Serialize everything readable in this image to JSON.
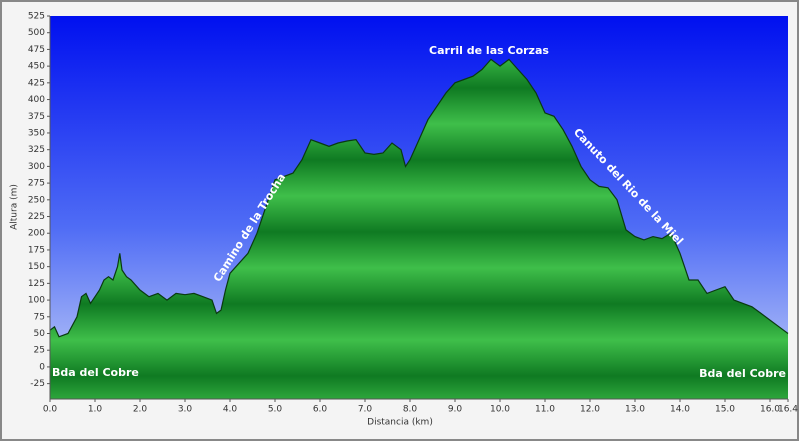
{
  "chart_data": {
    "type": "area",
    "xlabel": "Distancia  (km)",
    "ylabel": "Altura (m)",
    "x": [
      0.0,
      0.1,
      0.2,
      0.4,
      0.6,
      0.7,
      0.8,
      0.9,
      1.0,
      1.1,
      1.2,
      1.3,
      1.4,
      1.5,
      1.55,
      1.6,
      1.7,
      1.8,
      2.0,
      2.2,
      2.4,
      2.6,
      2.8,
      3.0,
      3.2,
      3.4,
      3.6,
      3.7,
      3.8,
      3.9,
      4.0,
      4.2,
      4.4,
      4.6,
      4.8,
      5.0,
      5.2,
      5.4,
      5.6,
      5.8,
      6.0,
      6.2,
      6.4,
      6.6,
      6.8,
      7.0,
      7.2,
      7.4,
      7.6,
      7.8,
      7.9,
      8.0,
      8.2,
      8.4,
      8.6,
      8.8,
      9.0,
      9.2,
      9.4,
      9.6,
      9.8,
      10.0,
      10.2,
      10.4,
      10.6,
      10.8,
      11.0,
      11.2,
      11.4,
      11.6,
      11.8,
      12.0,
      12.2,
      12.4,
      12.6,
      12.8,
      13.0,
      13.2,
      13.4,
      13.6,
      13.8,
      14.0,
      14.2,
      14.4,
      14.6,
      14.8,
      15.0,
      15.2,
      15.4,
      15.6,
      15.8,
      16.0,
      16.2,
      16.4
    ],
    "values": [
      55,
      60,
      45,
      50,
      75,
      105,
      110,
      95,
      105,
      115,
      130,
      135,
      130,
      150,
      170,
      145,
      135,
      130,
      115,
      105,
      110,
      100,
      110,
      108,
      110,
      105,
      100,
      80,
      85,
      115,
      140,
      155,
      170,
      200,
      240,
      280,
      285,
      290,
      310,
      340,
      335,
      330,
      335,
      338,
      340,
      320,
      318,
      320,
      335,
      325,
      300,
      310,
      340,
      370,
      390,
      410,
      425,
      430,
      435,
      445,
      460,
      450,
      460,
      445,
      430,
      410,
      380,
      375,
      355,
      330,
      300,
      280,
      270,
      268,
      250,
      205,
      195,
      190,
      195,
      192,
      200,
      170,
      130,
      130,
      110,
      115,
      120,
      100,
      95,
      90,
      80,
      70,
      60,
      50
    ],
    "color": "#1f9a2f",
    "xlim": [
      0,
      16.4
    ],
    "xticks": [
      {
        "value": 0,
        "label": "0.0"
      },
      {
        "value": 1,
        "label": "1.0"
      },
      {
        "value": 2,
        "label": "2.0"
      },
      {
        "value": 3,
        "label": "3.0"
      },
      {
        "value": 4,
        "label": "4.0"
      },
      {
        "value": 5,
        "label": "5.0"
      },
      {
        "value": 6,
        "label": "6.0"
      },
      {
        "value": 7,
        "label": "7.0"
      },
      {
        "value": 8,
        "label": "8.0"
      },
      {
        "value": 9,
        "label": "9.0"
      },
      {
        "value": 10,
        "label": "10.0"
      },
      {
        "value": 11,
        "label": "11.0"
      },
      {
        "value": 12,
        "label": "12.0"
      },
      {
        "value": 13,
        "label": "13.0"
      },
      {
        "value": 14,
        "label": "14.0"
      },
      {
        "value": 15,
        "label": "15.0"
      },
      {
        "value": 16,
        "label": "16.0"
      },
      16.4
    ],
    "ylim": [
      -48,
      525
    ],
    "yticks": [
      -25,
      0,
      25,
      50,
      75,
      100,
      125,
      150,
      175,
      200,
      225,
      250,
      275,
      300,
      325,
      350,
      375,
      400,
      425,
      450,
      475,
      500,
      525
    ],
    "annotations": [
      "Bda del Cobre",
      "Camino de la Trocha",
      "Carril de las Corzas",
      "Canuto del Rio de la Miel",
      "Bda del Cobre"
    ]
  }
}
